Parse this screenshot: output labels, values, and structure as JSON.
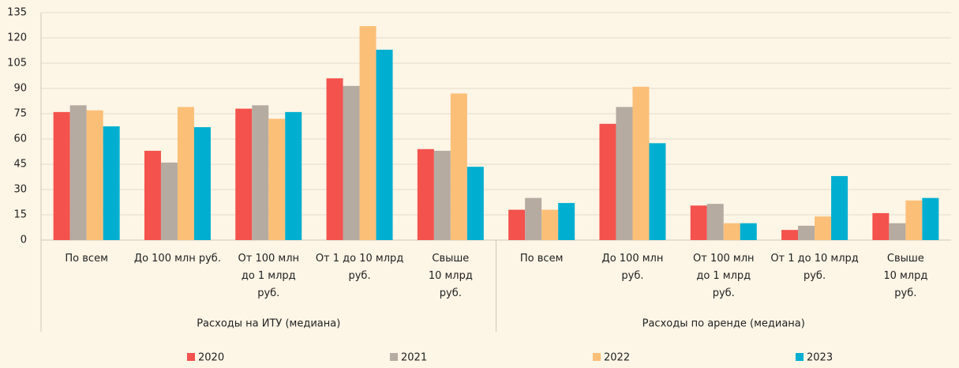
{
  "chart_data": {
    "type": "bar",
    "categories": [
      "По всем",
      "До 100 млн руб.",
      "От 100 млн\nдо 1 млрд\nруб.",
      "От 1 до 10 млрд\nруб.",
      "Свыше\n10 млрд\nруб.",
      "По всем",
      "До 100 млн\nруб.",
      "От 100 млн\nдо 1 млрд\nруб.",
      "От 1 до 10 млрд\nруб.",
      "Свыше\n10 млрд\nруб."
    ],
    "group_labels": [
      "Расходы на ИТУ (медиана)",
      "Расходы по аренде (медиана)"
    ],
    "series": [
      {
        "name": "2020",
        "color": "#f4524d",
        "values": [
          76,
          53,
          78,
          96,
          54,
          18,
          69,
          20.5,
          6,
          16
        ]
      },
      {
        "name": "2021",
        "color": "#b5aba1",
        "values": [
          80,
          46,
          80,
          91.5,
          53,
          25,
          79,
          21.5,
          8.5,
          10
        ]
      },
      {
        "name": "2022",
        "color": "#fbbf78",
        "values": [
          77,
          79,
          72,
          127,
          87,
          18,
          91,
          10,
          14,
          23.5
        ]
      },
      {
        "name": "2023",
        "color": "#00afd0",
        "values": [
          67.5,
          67,
          76,
          113,
          43.5,
          22,
          57.5,
          10,
          38,
          25
        ]
      }
    ],
    "ylim": [
      0,
      135
    ],
    "yticks": [
      0,
      15,
      30,
      45,
      60,
      75,
      90,
      105,
      120,
      135
    ],
    "grid": true
  }
}
